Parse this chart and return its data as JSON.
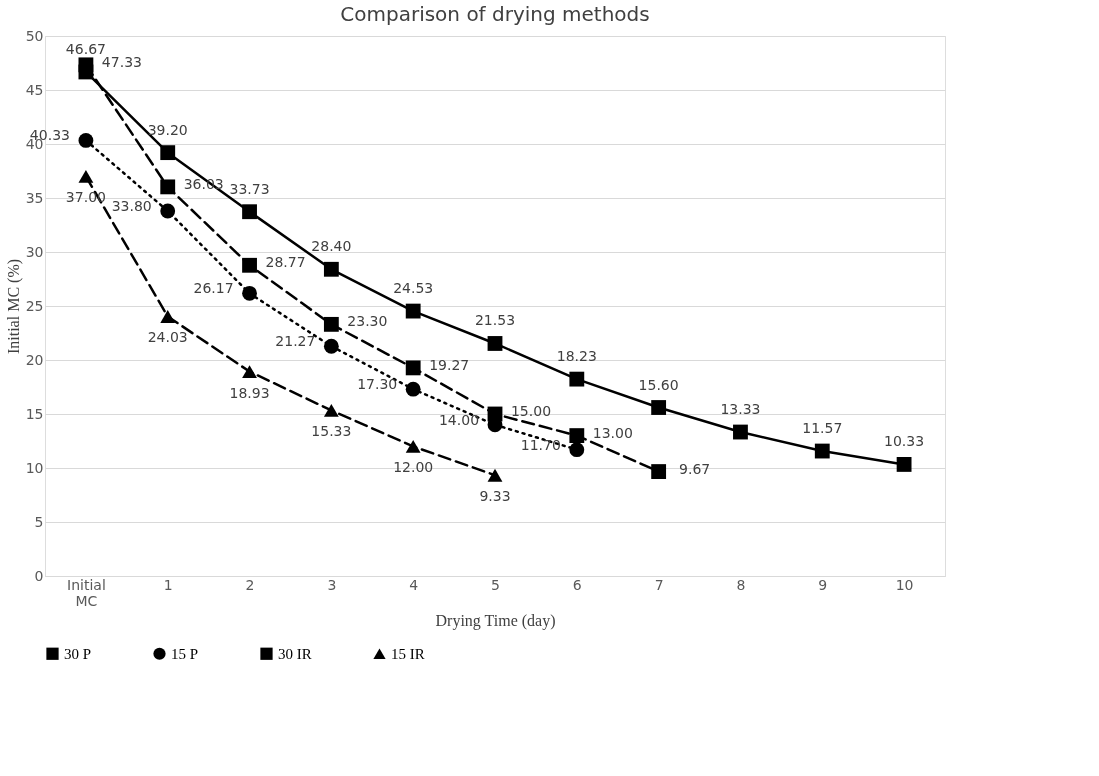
{
  "chart_data": {
    "type": "line",
    "title": "Comparison of drying methods",
    "xlabel": "Drying Time (day)",
    "ylabel": "Initial MC (%)",
    "categories": [
      "Initial MC",
      "1",
      "2",
      "3",
      "4",
      "5",
      "6",
      "7",
      "8",
      "9",
      "10"
    ],
    "series": [
      {
        "name": "30 P",
        "color": "#000000",
        "marker": "square",
        "line_style": "dashed",
        "values": [
          47.33,
          36.03,
          28.77,
          23.3,
          19.27,
          15.0,
          13.0,
          9.67,
          null,
          null,
          null
        ],
        "value_labels": [
          "47.33",
          "36.03",
          "28.77",
          "23.30",
          "19.27",
          "15.00",
          "13.00",
          "9.67",
          null,
          null,
          null
        ]
      },
      {
        "name": "15 P",
        "color": "#000000",
        "marker": "circle",
        "line_style": "dotted",
        "values": [
          40.33,
          33.8,
          26.17,
          21.27,
          17.3,
          14.0,
          11.7,
          null,
          null,
          null,
          null
        ],
        "value_labels": [
          "40.33",
          "33.80",
          "26.17",
          "21.27",
          "17.30",
          "14.00",
          "11.70",
          null,
          null,
          null,
          null
        ]
      },
      {
        "name": "30 IR",
        "color": "#000000",
        "marker": "square",
        "line_style": "solid",
        "values": [
          46.67,
          39.2,
          33.73,
          28.4,
          24.53,
          21.53,
          18.23,
          15.6,
          13.33,
          11.57,
          10.33
        ],
        "value_labels": [
          "46.67",
          "39.20",
          "33.73",
          "28.40",
          "24.53",
          "21.53",
          "18.23",
          "15.60",
          "13.33",
          "11.57",
          "10.33"
        ]
      },
      {
        "name": "15 IR",
        "color": "#000000",
        "marker": "triangle",
        "line_style": "dashed",
        "values": [
          37.0,
          24.03,
          18.93,
          15.33,
          12.0,
          9.33,
          null,
          null,
          null,
          null,
          null
        ],
        "value_labels": [
          "37.00",
          "24.03",
          "18.93",
          "15.33",
          "12.00",
          "9.33",
          null,
          null,
          null,
          null,
          null
        ]
      }
    ],
    "ylim": [
      0,
      50
    ],
    "yticks": [
      0,
      5,
      10,
      15,
      20,
      25,
      30,
      35,
      40,
      45,
      50
    ],
    "grid": "y",
    "legend": "bottom"
  }
}
